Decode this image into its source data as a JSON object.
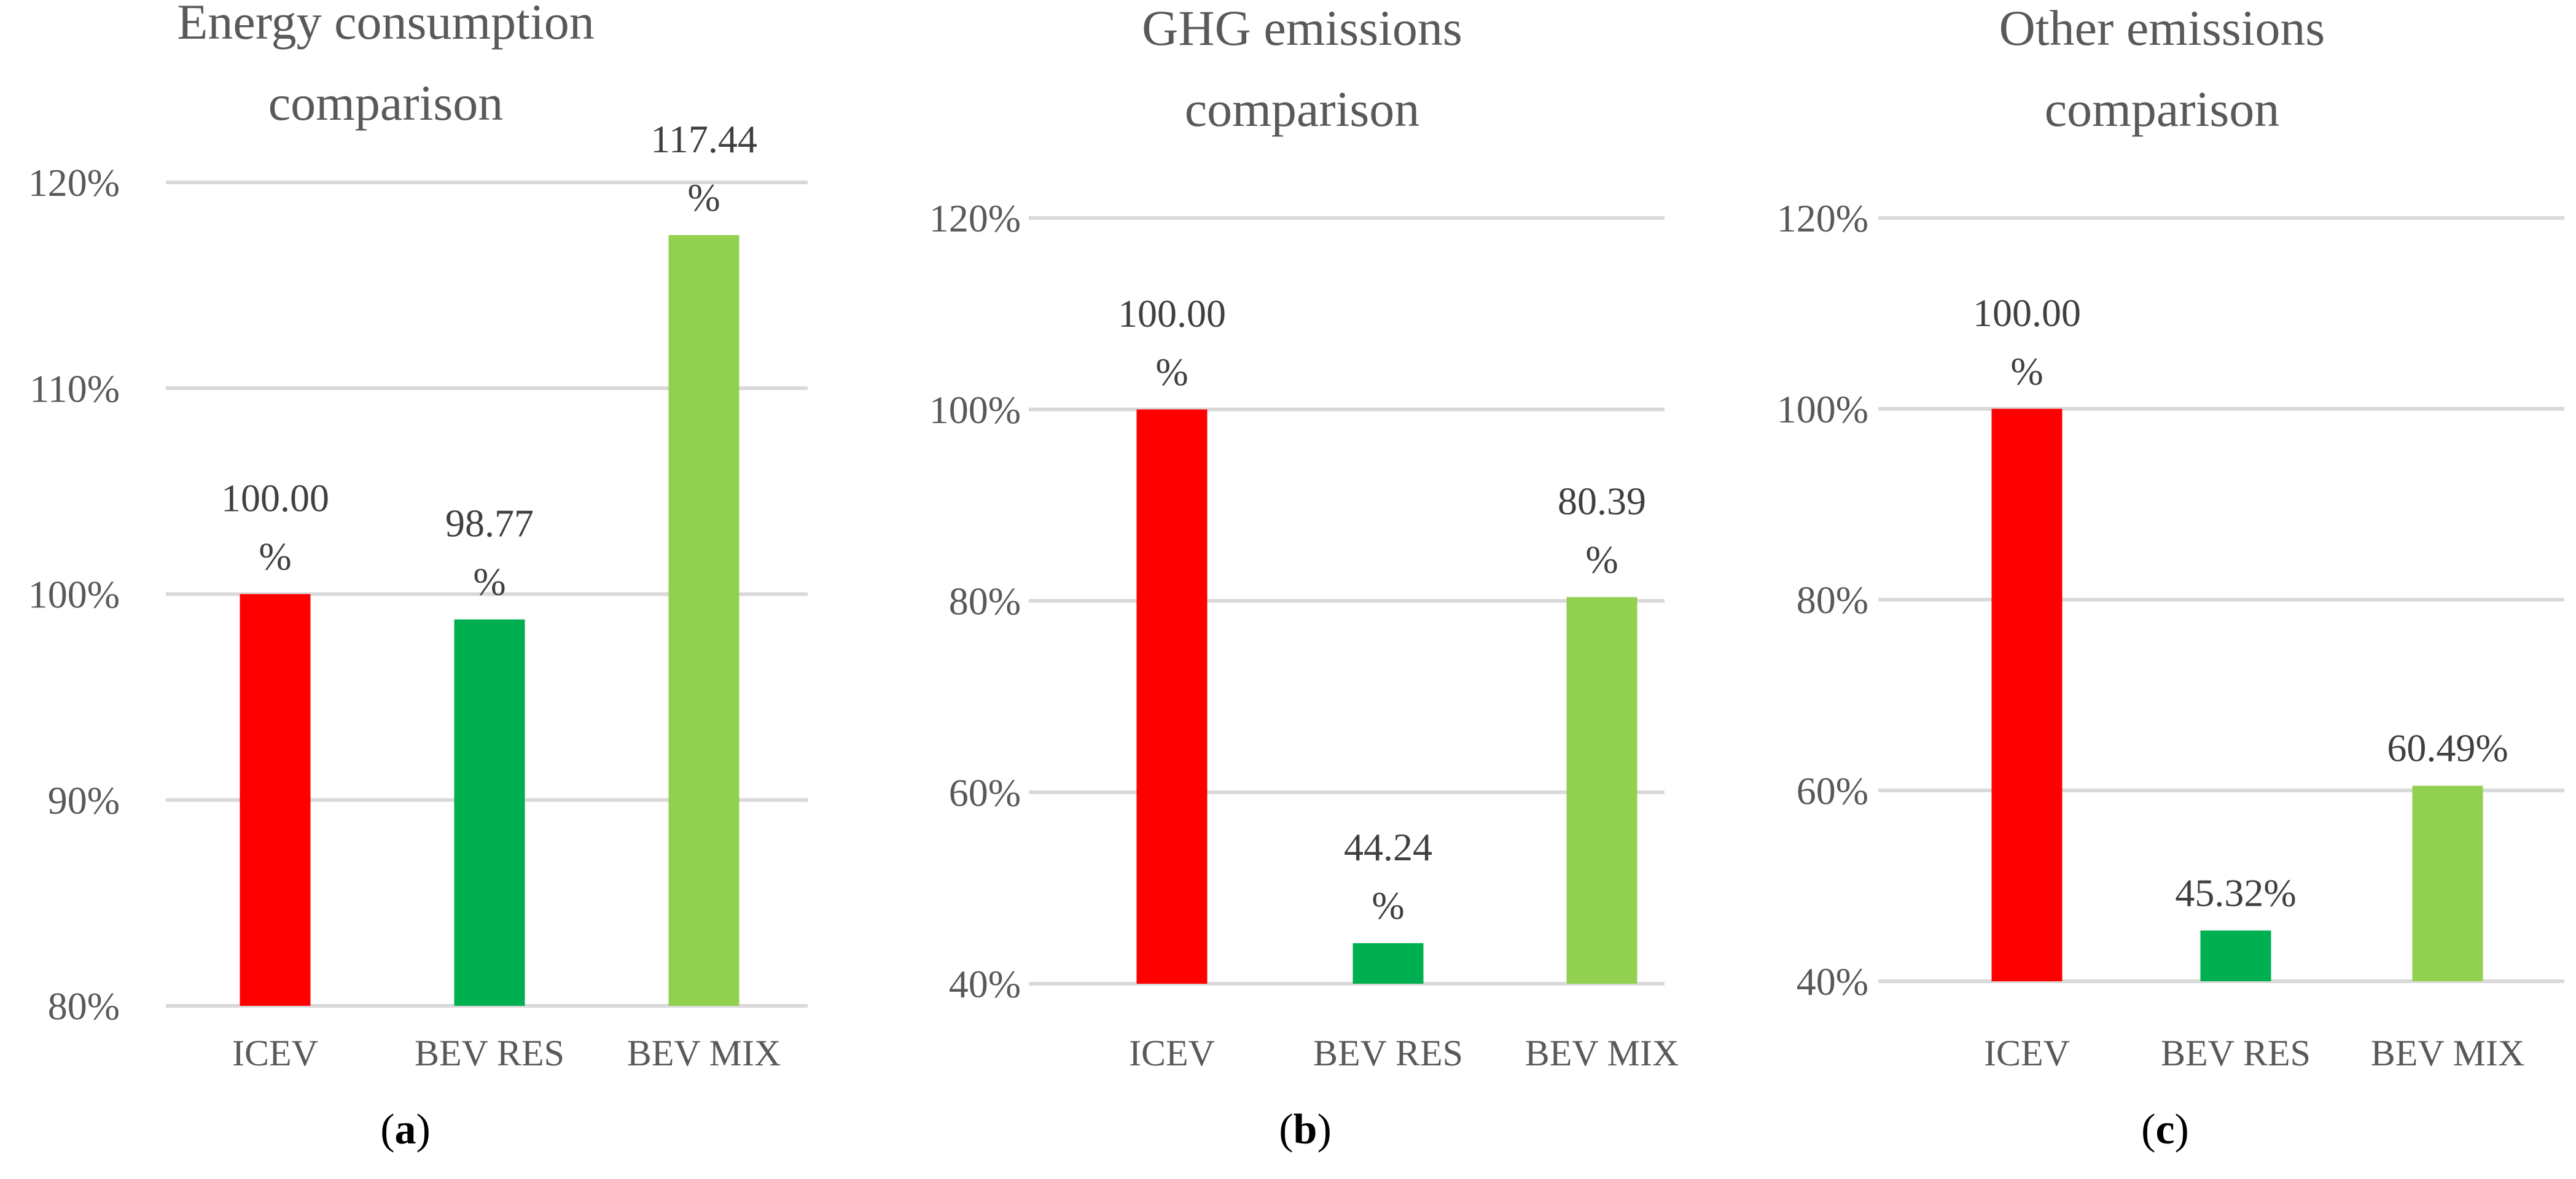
{
  "chart_data": [
    {
      "type": "bar",
      "title": "Energy consumption comparison",
      "title_lines": [
        "Energy consumption",
        "comparison"
      ],
      "categories": [
        "ICEV",
        "BEV RES",
        "BEV MIX"
      ],
      "values": [
        100.0,
        98.77,
        117.44
      ],
      "data_labels": [
        {
          "lines": [
            "100.00",
            "%"
          ]
        },
        {
          "lines": [
            "98.77",
            "%"
          ]
        },
        {
          "lines": [
            "117.44",
            "%"
          ]
        }
      ],
      "colors": [
        "#ff0000",
        "#00b050",
        "#92d050"
      ],
      "ylim": [
        80,
        120
      ],
      "yticks": [
        80,
        90,
        100,
        110,
        120
      ],
      "ytick_labels": [
        "80%",
        "90%",
        "100%",
        "110%",
        "120%"
      ],
      "grid": true,
      "xlabel": "",
      "ylabel": "",
      "panel_label": "a"
    },
    {
      "type": "bar",
      "title": "GHG emissions comparison",
      "title_lines": [
        "GHG emissions",
        "comparison"
      ],
      "categories": [
        "ICEV",
        "BEV RES",
        "BEV MIX"
      ],
      "values": [
        100.0,
        44.24,
        80.39
      ],
      "data_labels": [
        {
          "lines": [
            "100.00",
            "%"
          ]
        },
        {
          "lines": [
            "44.24",
            "%"
          ]
        },
        {
          "lines": [
            "80.39",
            "%"
          ]
        }
      ],
      "colors": [
        "#ff0000",
        "#00b050",
        "#92d050"
      ],
      "ylim": [
        40,
        120
      ],
      "yticks": [
        40,
        60,
        80,
        100,
        120
      ],
      "ytick_labels": [
        "40%",
        "60%",
        "80%",
        "100%",
        "120%"
      ],
      "grid": true,
      "xlabel": "",
      "ylabel": "",
      "panel_label": "b"
    },
    {
      "type": "bar",
      "title": "Other emissions comparison",
      "title_lines": [
        "Other emissions",
        "comparison"
      ],
      "categories": [
        "ICEV",
        "BEV RES",
        "BEV MIX"
      ],
      "values": [
        100.0,
        45.32,
        60.49
      ],
      "data_labels": [
        {
          "lines": [
            "100.00",
            "%"
          ]
        },
        {
          "lines": [
            "45.32%"
          ]
        },
        {
          "lines": [
            "60.49%"
          ]
        }
      ],
      "colors": [
        "#ff0000",
        "#00b050",
        "#92d050"
      ],
      "ylim": [
        40,
        120
      ],
      "yticks": [
        40,
        60,
        80,
        100,
        120
      ],
      "ytick_labels": [
        "40%",
        "60%",
        "80%",
        "100%",
        "120%"
      ],
      "grid": true,
      "xlabel": "",
      "ylabel": "",
      "panel_label": "c"
    }
  ]
}
